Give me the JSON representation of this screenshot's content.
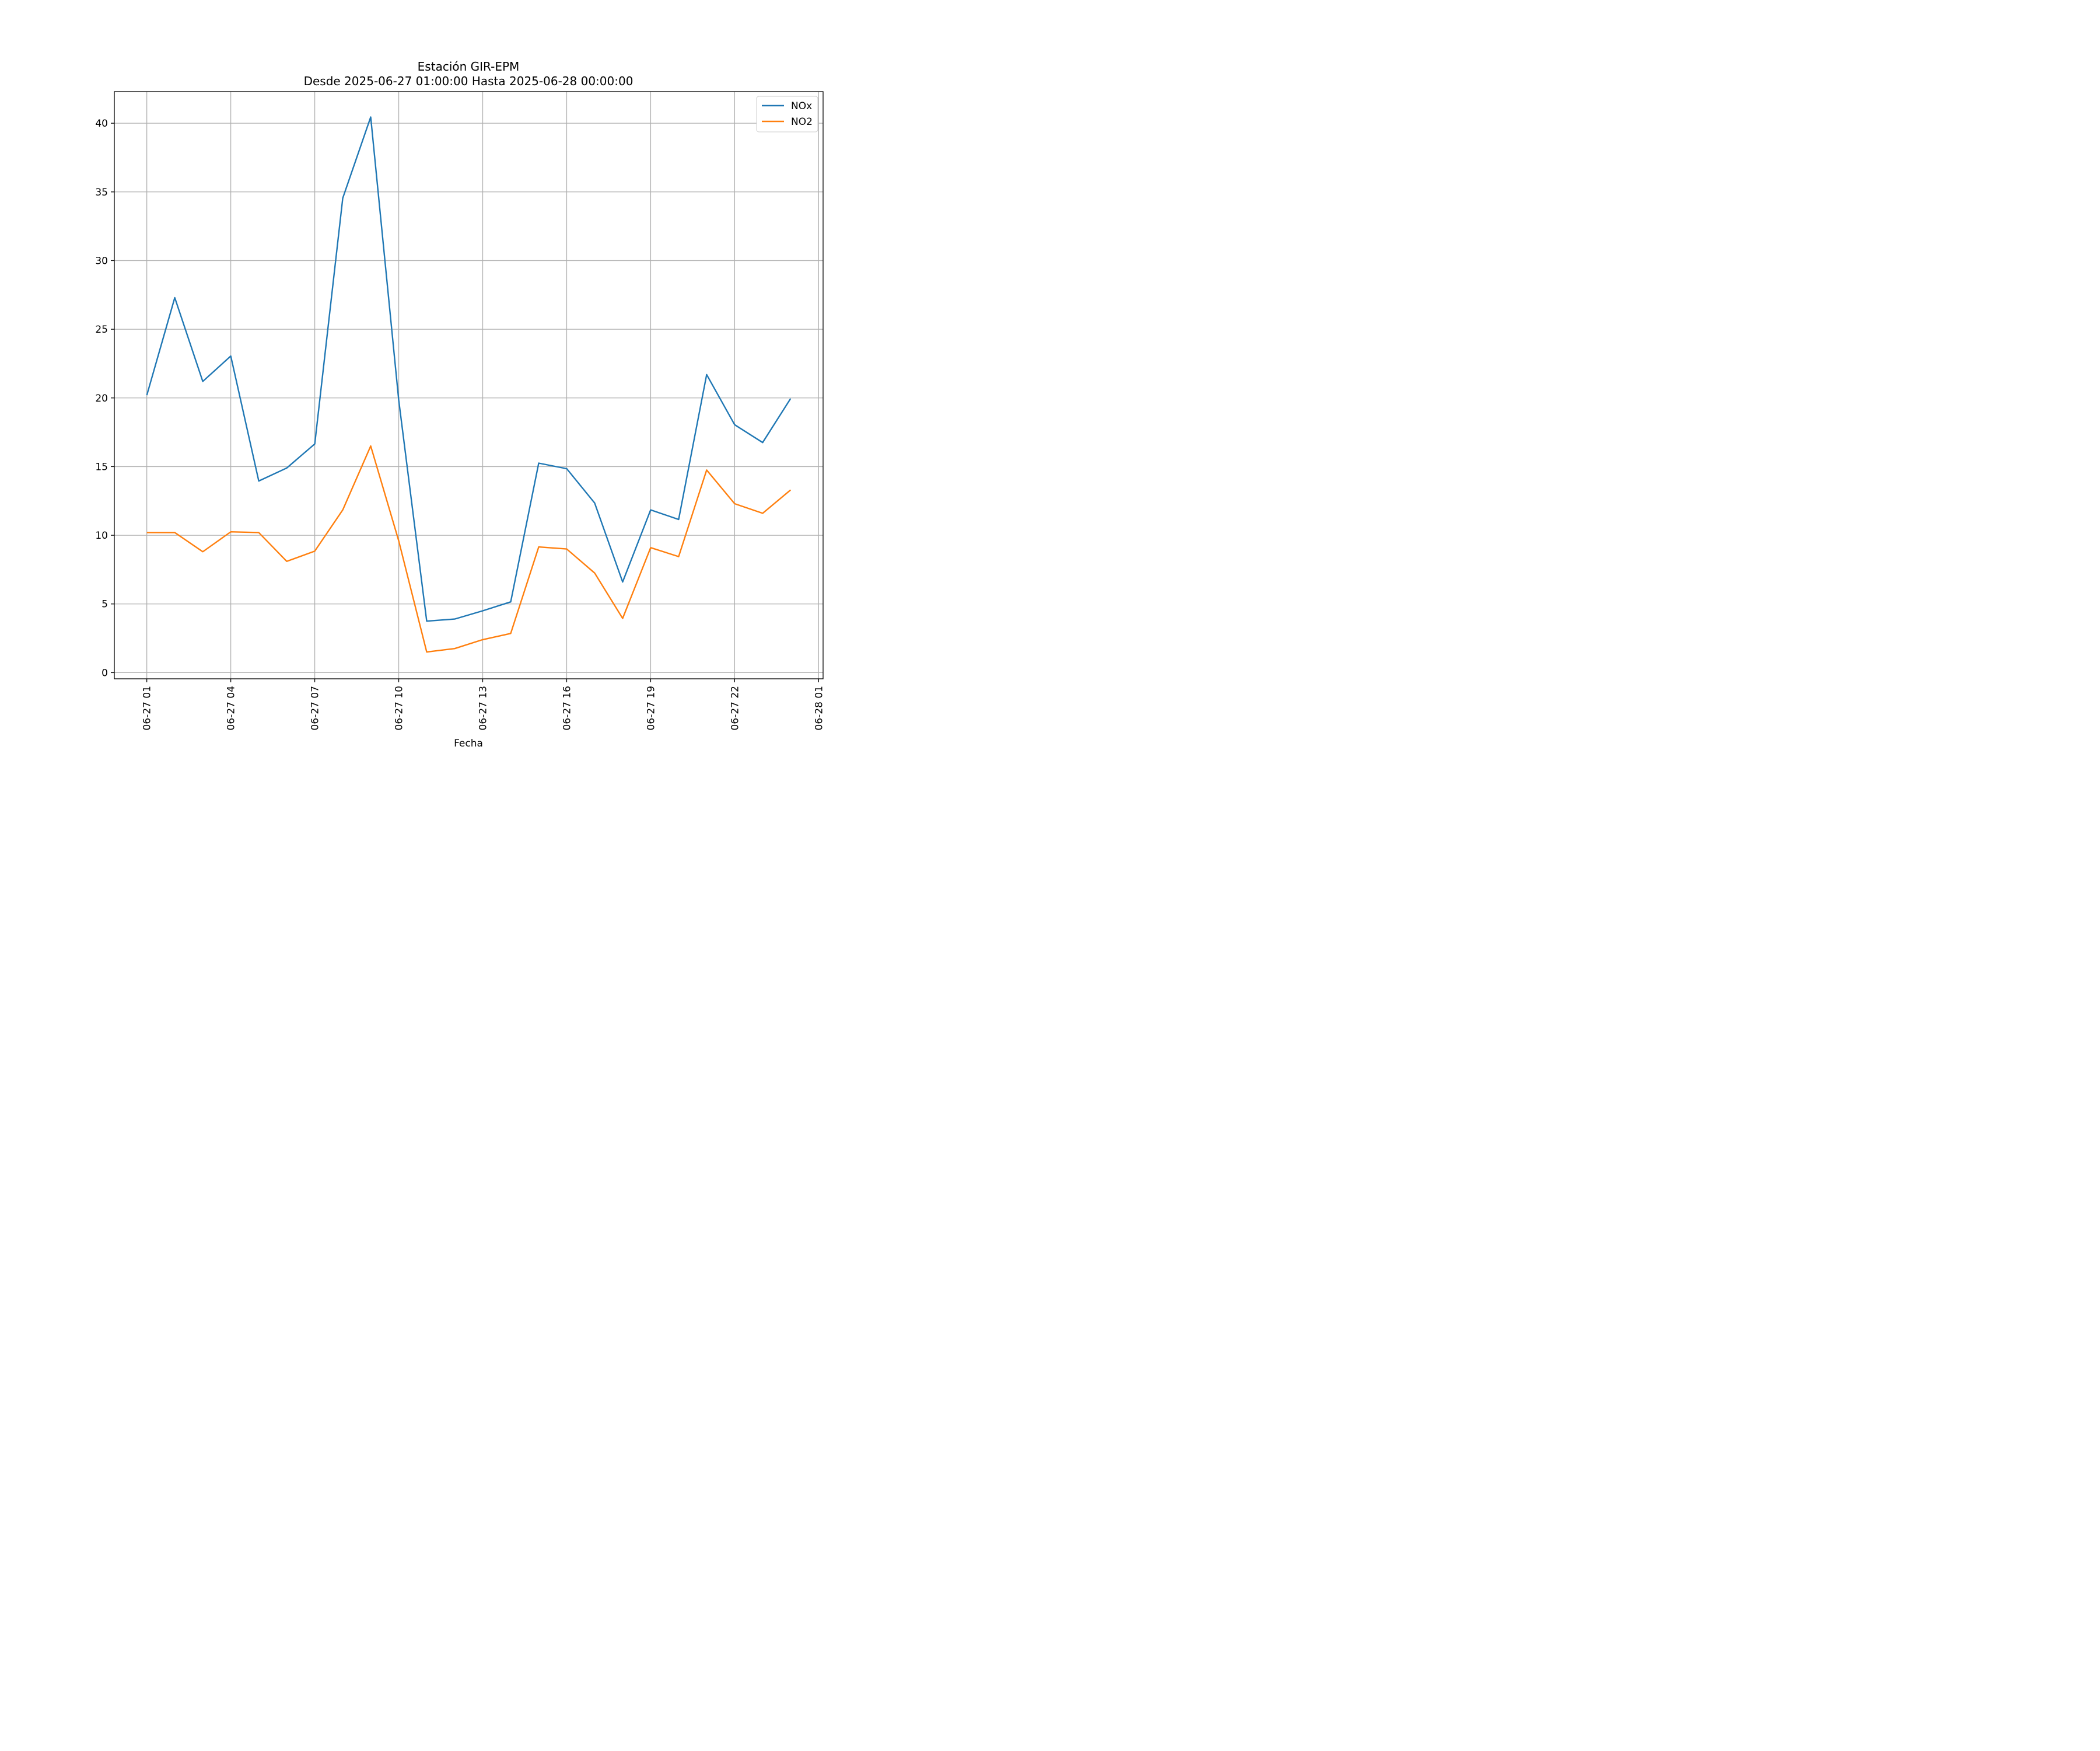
{
  "chart_data": {
    "type": "line",
    "title": "Estación GIR-EPM",
    "subtitle": "Desde 2025-06-27 01:00:00 Hasta 2025-06-28 00:00:00",
    "xlabel": "Fecha",
    "ylabel": "",
    "x": [
      "2025-06-27 01:00",
      "2025-06-27 02:00",
      "2025-06-27 03:00",
      "2025-06-27 04:00",
      "2025-06-27 05:00",
      "2025-06-27 06:00",
      "2025-06-27 07:00",
      "2025-06-27 08:00",
      "2025-06-27 09:00",
      "2025-06-27 10:00",
      "2025-06-27 11:00",
      "2025-06-27 12:00",
      "2025-06-27 13:00",
      "2025-06-27 14:00",
      "2025-06-27 15:00",
      "2025-06-27 16:00",
      "2025-06-27 17:00",
      "2025-06-27 18:00",
      "2025-06-27 19:00",
      "2025-06-27 20:00",
      "2025-06-27 21:00",
      "2025-06-27 22:00",
      "2025-06-27 23:00",
      "2025-06-28 00:00"
    ],
    "series": [
      {
        "name": "NOx",
        "color": "#1f77b4",
        "values": [
          20.2,
          27.3,
          21.2,
          23.05,
          13.95,
          14.9,
          16.65,
          34.55,
          40.45,
          19.85,
          3.75,
          3.9,
          4.5,
          5.15,
          15.25,
          14.85,
          12.35,
          6.6,
          11.85,
          11.15,
          21.7,
          18.05,
          16.75,
          19.95
        ]
      },
      {
        "name": "NO2",
        "color": "#ff7f0e",
        "values": [
          10.2,
          10.2,
          8.8,
          10.25,
          10.2,
          8.1,
          8.85,
          11.85,
          16.5,
          9.6,
          1.5,
          1.75,
          2.4,
          2.85,
          9.15,
          9.0,
          7.25,
          3.95,
          9.1,
          8.45,
          14.75,
          12.3,
          11.6,
          13.3
        ]
      }
    ],
    "xticks": [
      "06-27 01",
      "06-27 04",
      "06-27 07",
      "06-27 10",
      "06-27 13",
      "06-27 16",
      "06-27 19",
      "06-27 22",
      "06-28 01"
    ],
    "yticks": [
      "0",
      "5",
      "10",
      "15",
      "20",
      "25",
      "30",
      "35",
      "40"
    ],
    "xlim_hours_from_first": [
      -1.16,
      24.16
    ],
    "ylim": [
      -0.45,
      42.3
    ],
    "grid": true,
    "legend": "top-right"
  }
}
